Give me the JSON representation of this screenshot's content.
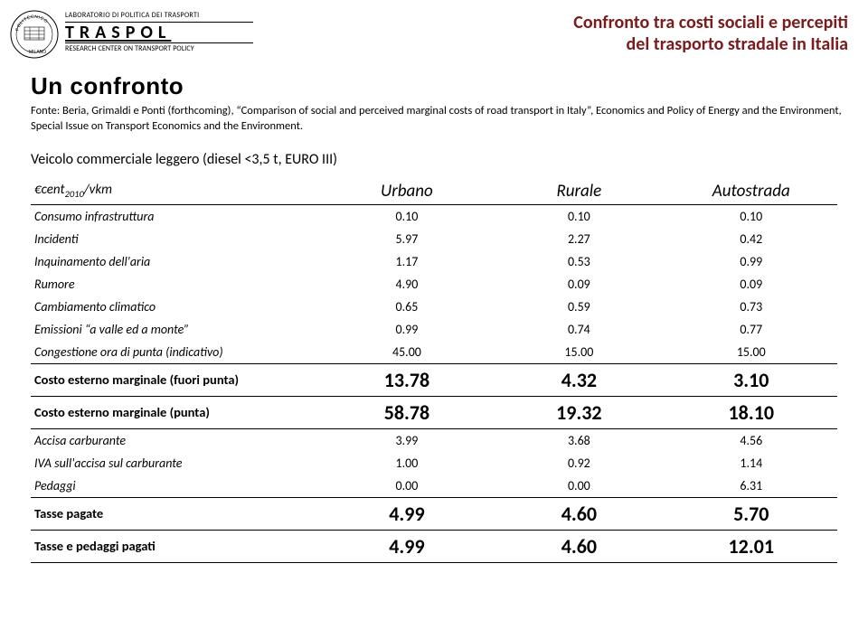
{
  "header": {
    "lab_line1": "LABORATORIO DI POLITICA DEI TRASPORTI",
    "traspol": "TRASPOL",
    "lab_line3": "RESEARCH CENTER ON TRANSPORT POLICY",
    "title_line1": "Confronto tra costi sociali e percepiti",
    "title_line2": "del trasporto stradale in Italia",
    "title_color": "#7b1b1b"
  },
  "section_title": "Un confronto",
  "source_text": "Fonte: Beria, Grimaldi e Ponti (forthcoming), “Comparison of social and perceived marginal costs of road transport in Italy”, Economics and Policy of Energy and the Environment, Special Issue on Transport Economics and the Environment.",
  "subtitle": "Veicolo commerciale leggero (diesel <3,5 t, EURO III)",
  "table": {
    "header_unit_html": "€cent<sub>2010</sub>/vkm",
    "columns": [
      "Urbano",
      "Rurale",
      "Autostrada"
    ],
    "rows": [
      {
        "label": "Consumo infrastruttura",
        "values": [
          "0.10",
          "0.10",
          "0.10"
        ],
        "bold": false,
        "rule_top": false
      },
      {
        "label": "Incidenti",
        "values": [
          "5.97",
          "2.27",
          "0.42"
        ],
        "bold": false,
        "rule_top": false
      },
      {
        "label": "Inquinamento dell'aria",
        "values": [
          "1.17",
          "0.53",
          "0.99"
        ],
        "bold": false,
        "rule_top": false
      },
      {
        "label": "Rumore",
        "values": [
          "4.90",
          "0.09",
          "0.09"
        ],
        "bold": false,
        "rule_top": false
      },
      {
        "label": "Cambiamento climatico",
        "values": [
          "0.65",
          "0.59",
          "0.73"
        ],
        "bold": false,
        "rule_top": false
      },
      {
        "label": "Emissioni “a valle ed a monte”",
        "values": [
          "0.99",
          "0.74",
          "0.77"
        ],
        "bold": false,
        "rule_top": false
      },
      {
        "label": "Congestione ora di punta (indicativo)",
        "values": [
          "45.00",
          "15.00",
          "15.00"
        ],
        "bold": false,
        "rule_top": false
      },
      {
        "label": "Costo esterno marginale (fuori punta)",
        "values": [
          "13.78",
          "4.32",
          "3.10"
        ],
        "bold": true,
        "rule_top": true
      },
      {
        "label": "Costo esterno marginale (punta)",
        "values": [
          "58.78",
          "19.32",
          "18.10"
        ],
        "bold": true,
        "rule_top": true
      },
      {
        "label": "Accisa carburante",
        "values": [
          "3.99",
          "3.68",
          "4.56"
        ],
        "bold": false,
        "rule_top": true
      },
      {
        "label": "IVA sull'accisa sul carburante",
        "values": [
          "1.00",
          "0.92",
          "1.14"
        ],
        "bold": false,
        "rule_top": false
      },
      {
        "label": "Pedaggi",
        "values": [
          "0.00",
          "0.00",
          "6.31"
        ],
        "bold": false,
        "rule_top": false
      },
      {
        "label": "Tasse pagate",
        "values": [
          "4.99",
          "4.60",
          "5.70"
        ],
        "bold": true,
        "rule_top": true
      },
      {
        "label": "Tasse e pedaggi pagati",
        "values": [
          "4.99",
          "4.60",
          "12.01"
        ],
        "bold": true,
        "rule_top": true,
        "rule_bot": true
      }
    ]
  }
}
